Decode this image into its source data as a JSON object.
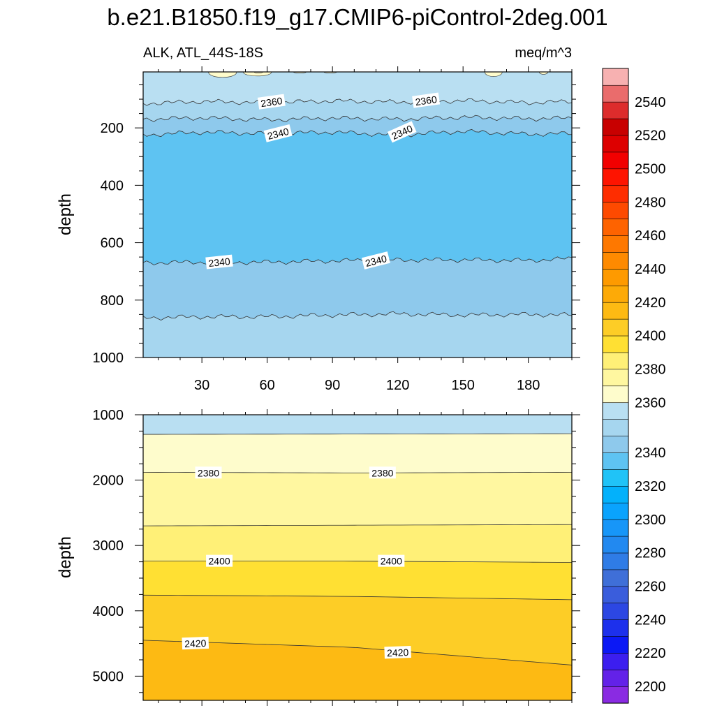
{
  "title": "b.e21.B1850.f19_g17.CMIP6-piControl-2deg.001",
  "chart_data": [
    {
      "type": "contour",
      "panel": "upper",
      "left_string": "ALK, ATL_44S-18S",
      "right_string": "meq/m^3",
      "ylabel": "depth",
      "xlim": [
        3,
        200
      ],
      "ylim": [
        1000,
        5
      ],
      "x_ticks": [
        30,
        60,
        90,
        120,
        150,
        180
      ],
      "x_tick_labels": [
        "30",
        "60",
        "90",
        "120",
        "150",
        "180"
      ],
      "y_ticks": [
        200,
        400,
        600,
        800,
        1000
      ],
      "y_tick_labels": [
        "200",
        "400",
        "600",
        "800",
        "1000"
      ],
      "fields": [
        {
          "level": 2360,
          "color": "#b9dff2"
        },
        {
          "level": 2350,
          "color": "#a6d6ef"
        },
        {
          "level": 2345,
          "color": "#8ec9ec"
        },
        {
          "level": 2340,
          "color": "#5ec3f2"
        },
        {
          "level": 2370,
          "color": "#fefccc"
        }
      ],
      "contour_lines": [
        {
          "value": 2360,
          "depth_profile": [
            [
              3,
              115
            ],
            [
              30,
              108
            ],
            [
              60,
              112
            ],
            [
              90,
              106
            ],
            [
              120,
              110
            ],
            [
              150,
              105
            ],
            [
              180,
              112
            ],
            [
              200,
              108
            ]
          ]
        },
        {
          "value": 2350,
          "depth_profile": [
            [
              3,
              170
            ],
            [
              30,
              165
            ],
            [
              60,
              172
            ],
            [
              90,
              166
            ],
            [
              120,
              170
            ],
            [
              150,
              163
            ],
            [
              180,
              168
            ],
            [
              200,
              166
            ]
          ]
        },
        {
          "value": 2340,
          "depth_profile": [
            [
              3,
              225
            ],
            [
              30,
              215
            ],
            [
              60,
              220
            ],
            [
              90,
              215
            ],
            [
              120,
              225
            ],
            [
              150,
              212
            ],
            [
              180,
              222
            ],
            [
              200,
              220
            ]
          ]
        },
        {
          "value": 2340,
          "depth_profile": [
            [
              3,
              670
            ],
            [
              30,
              668
            ],
            [
              60,
              668
            ],
            [
              90,
              663
            ],
            [
              120,
              660
            ],
            [
              150,
              660
            ],
            [
              180,
              662
            ],
            [
              200,
              655
            ]
          ]
        },
        {
          "value": 2350,
          "depth_profile": [
            [
              3,
              862
            ],
            [
              30,
              858
            ],
            [
              60,
              858
            ],
            [
              90,
              852
            ],
            [
              120,
              848
            ],
            [
              150,
              852
            ],
            [
              180,
              850
            ],
            [
              200,
              852
            ]
          ]
        }
      ],
      "contour_labels": [
        {
          "text": "2360",
          "x": 62,
          "depth": 110
        },
        {
          "text": "2360",
          "x": 133,
          "depth": 105
        },
        {
          "text": "2340",
          "x": 65,
          "depth": 220
        },
        {
          "text": "2340",
          "x": 122,
          "depth": 215
        },
        {
          "text": "2340",
          "x": 38,
          "depth": 668
        },
        {
          "text": "2340",
          "x": 110,
          "depth": 663
        }
      ]
    },
    {
      "type": "contour",
      "panel": "lower",
      "ylabel": "depth",
      "xlim": [
        3,
        200
      ],
      "ylim": [
        5370,
        1000
      ],
      "x_ticks": [
        30,
        60,
        90,
        120,
        150,
        180
      ],
      "y_ticks": [
        1000,
        2000,
        3000,
        4000,
        5000
      ],
      "y_tick_labels": [
        "1000",
        "2000",
        "3000",
        "4000",
        "5000"
      ],
      "fields": [
        {
          "level": 2360,
          "color": "#b9dff2"
        },
        {
          "level": 2370,
          "color": "#fefccc"
        },
        {
          "level": 2380,
          "color": "#fff7a0"
        },
        {
          "level": 2390,
          "color": "#fff077"
        },
        {
          "level": 2400,
          "color": "#ffe033"
        },
        {
          "level": 2410,
          "color": "#fdcd26"
        },
        {
          "level": 2420,
          "color": "#fdba13"
        }
      ],
      "contour_lines": [
        {
          "value": 2370,
          "depth_profile": [
            [
              3,
              1300
            ],
            [
              200,
              1290
            ]
          ]
        },
        {
          "value": 2380,
          "depth_profile": [
            [
              3,
              1880
            ],
            [
              100,
              1890
            ],
            [
              200,
              1880
            ]
          ]
        },
        {
          "value": 2390,
          "depth_profile": [
            [
              3,
              2700
            ],
            [
              100,
              2690
            ],
            [
              200,
              2680
            ]
          ]
        },
        {
          "value": 2400,
          "depth_profile": [
            [
              3,
              3240
            ],
            [
              100,
              3240
            ],
            [
              200,
              3260
            ]
          ]
        },
        {
          "value": 2410,
          "depth_profile": [
            [
              3,
              3760
            ],
            [
              100,
              3780
            ],
            [
              200,
              3830
            ]
          ]
        },
        {
          "value": 2420,
          "depth_profile": [
            [
              3,
              4450
            ],
            [
              100,
              4560
            ],
            [
              200,
              4830
            ]
          ]
        }
      ],
      "contour_labels": [
        {
          "text": "2380",
          "x": 33,
          "depth": 1890
        },
        {
          "text": "2380",
          "x": 113,
          "depth": 1890
        },
        {
          "text": "2400",
          "x": 38,
          "depth": 3240
        },
        {
          "text": "2400",
          "x": 117,
          "depth": 3240
        },
        {
          "text": "2420",
          "x": 27,
          "depth": 4500
        },
        {
          "text": "2420",
          "x": 120,
          "depth": 4640
        }
      ]
    }
  ],
  "colorbar": {
    "levels_low_to_high": [
      2190,
      2200,
      2210,
      2220,
      2230,
      2240,
      2250,
      2260,
      2270,
      2280,
      2290,
      2300,
      2310,
      2320,
      2330,
      2340,
      2345,
      2350,
      2360,
      2370,
      2380,
      2390,
      2400,
      2410,
      2420,
      2430,
      2440,
      2450,
      2460,
      2470,
      2480,
      2490,
      2500,
      2510,
      2520,
      2530,
      2540,
      2550
    ],
    "colors_low_to_high": [
      "#8a2be2",
      "#6322e8",
      "#3c1eef",
      "#0b18f5",
      "#1d30ec",
      "#2c47e3",
      "#3a5ddc",
      "#3f6fd8",
      "#2f7ce6",
      "#2289f0",
      "#1796f8",
      "#0aa3fd",
      "#03b1fb",
      "#20c3f7",
      "#5ec3f2",
      "#8ec9ec",
      "#a6d6ef",
      "#b9dff2",
      "#fefccc",
      "#fff7a0",
      "#fff077",
      "#ffe033",
      "#fdcd26",
      "#fdba13",
      "#fdaa07",
      "#fe9a00",
      "#fe8a00",
      "#fe7800",
      "#fe6300",
      "#fe4a00",
      "#fe2d00",
      "#fe1400",
      "#f20000",
      "#dd0000",
      "#c80000",
      "#dd2c2c",
      "#ea6c6c",
      "#f7b1b1"
    ],
    "tick_values": [
      2200,
      2220,
      2240,
      2260,
      2280,
      2300,
      2320,
      2340,
      2360,
      2380,
      2400,
      2420,
      2440,
      2460,
      2480,
      2500,
      2520,
      2540
    ],
    "tick_labels": [
      "2200",
      "2220",
      "2240",
      "2260",
      "2280",
      "2300",
      "2320",
      "2340",
      "2360",
      "2380",
      "2400",
      "2420",
      "2440",
      "2460",
      "2480",
      "2500",
      "2520",
      "2540"
    ]
  }
}
